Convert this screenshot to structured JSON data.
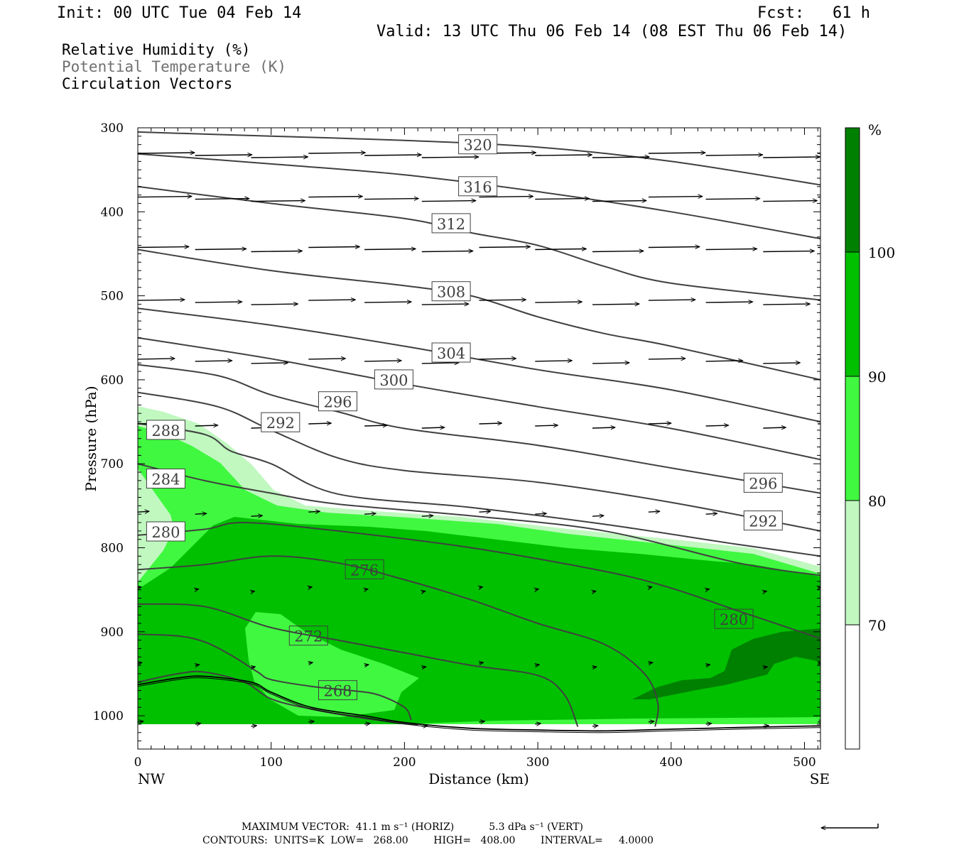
{
  "header": {
    "init": "Init: 00 UTC Tue 04 Feb 14",
    "fcst": "Fcst:   61 h",
    "valid": "Valid: 13 UTC Thu 06 Feb 14 (08 EST Thu 06 Feb 14)"
  },
  "legend": {
    "rh": "Relative Humidity (%)",
    "theta": "Potential Temperature (K)",
    "vectors": "Circulation Vectors"
  },
  "colors": {
    "rh70": "#c0f8c0",
    "rh80": "#40f840",
    "rh90": "#00c000",
    "rh100": "#008000",
    "contour": "#404040"
  },
  "chart_data": {
    "type": "cross-section",
    "xlabel": "Distance (km)",
    "ylabel": "Pressure (hPa)",
    "xlim": [
      0,
      512
    ],
    "ylim": [
      1040,
      300
    ],
    "x_ticks": [
      "0",
      "100",
      "200",
      "300",
      "400",
      "500"
    ],
    "y_ticks": [
      "300",
      "400",
      "500",
      "600",
      "700",
      "800",
      "900",
      "1000"
    ],
    "x_end_labels": {
      "left": "NW",
      "right": "SE"
    },
    "colorbar": {
      "unit": "%",
      "levels": [
        "70",
        "80",
        "90",
        "100"
      ]
    },
    "theta_contours": [
      {
        "value": 320,
        "points": [
          [
            0,
            305
          ],
          [
            100,
            310
          ],
          [
            200,
            315
          ],
          [
            300,
            323
          ],
          [
            400,
            340
          ],
          [
            512,
            368
          ]
        ]
      },
      {
        "value": 316,
        "points": [
          [
            0,
            331
          ],
          [
            100,
            343
          ],
          [
            200,
            356
          ],
          [
            300,
            376
          ],
          [
            400,
            400
          ],
          [
            512,
            432
          ]
        ]
      },
      {
        "value": 312,
        "points": [
          [
            0,
            370
          ],
          [
            100,
            390
          ],
          [
            200,
            408
          ],
          [
            250,
            425
          ],
          [
            300,
            440
          ],
          [
            350,
            465
          ],
          [
            400,
            485
          ],
          [
            512,
            505
          ]
        ]
      },
      {
        "value": 308,
        "points": [
          [
            0,
            445
          ],
          [
            100,
            470
          ],
          [
            200,
            488
          ],
          [
            250,
            500
          ],
          [
            300,
            525
          ],
          [
            350,
            545
          ],
          [
            400,
            560
          ],
          [
            512,
            600
          ]
        ]
      },
      {
        "value": 304,
        "points": [
          [
            0,
            515
          ],
          [
            100,
            535
          ],
          [
            200,
            560
          ],
          [
            300,
            588
          ],
          [
            400,
            612
          ],
          [
            512,
            650
          ]
        ]
      },
      {
        "value": 300,
        "points": [
          [
            0,
            550
          ],
          [
            100,
            575
          ],
          [
            200,
            605
          ],
          [
            300,
            632
          ],
          [
            400,
            658
          ],
          [
            512,
            695
          ]
        ]
      },
      {
        "value": 296,
        "points": [
          [
            0,
            582
          ],
          [
            60,
            595
          ],
          [
            100,
            618
          ],
          [
            150,
            638
          ],
          [
            200,
            658
          ],
          [
            300,
            678
          ],
          [
            400,
            705
          ],
          [
            512,
            735
          ]
        ]
      },
      {
        "value": 292,
        "points": [
          [
            0,
            615
          ],
          [
            60,
            632
          ],
          [
            100,
            660
          ],
          [
            150,
            693
          ],
          [
            200,
            708
          ],
          [
            300,
            722
          ],
          [
            400,
            746
          ],
          [
            512,
            780
          ]
        ]
      },
      {
        "value": 288,
        "points": [
          [
            0,
            652
          ],
          [
            50,
            665
          ],
          [
            70,
            685
          ],
          [
            100,
            700
          ],
          [
            150,
            736
          ],
          [
            250,
            752
          ],
          [
            350,
            772
          ],
          [
            450,
            796
          ],
          [
            512,
            810
          ]
        ]
      },
      {
        "value": 284,
        "points": [
          [
            0,
            700
          ],
          [
            50,
            720
          ],
          [
            100,
            735
          ],
          [
            150,
            748
          ],
          [
            250,
            762
          ],
          [
            350,
            780
          ],
          [
            450,
            818
          ],
          [
            512,
            833
          ]
        ]
      },
      {
        "value": 280,
        "points": [
          [
            0,
            785
          ],
          [
            50,
            778
          ],
          [
            80,
            770
          ],
          [
            150,
            780
          ],
          [
            250,
            800
          ],
          [
            350,
            828
          ],
          [
            400,
            848
          ],
          [
            450,
            875
          ],
          [
            512,
            908
          ]
        ]
      },
      {
        "value": 276,
        "points": [
          [
            0,
            826
          ],
          [
            50,
            820
          ],
          [
            100,
            810
          ],
          [
            150,
            818
          ],
          [
            200,
            838
          ],
          [
            250,
            862
          ],
          [
            300,
            890
          ],
          [
            350,
            915
          ],
          [
            380,
            950
          ],
          [
            390,
            985
          ],
          [
            388,
            1013
          ]
        ]
      },
      {
        "value": 276,
        "points": [
          [
            0,
            867
          ],
          [
            50,
            870
          ],
          [
            100,
            895
          ],
          [
            150,
            910
          ],
          [
            200,
            925
          ],
          [
            250,
            940
          ],
          [
            300,
            952
          ],
          [
            320,
            975
          ],
          [
            330,
            1013
          ]
        ]
      },
      {
        "value": 272,
        "points": [
          [
            0,
            903
          ],
          [
            30,
            905
          ],
          [
            50,
            912
          ],
          [
            70,
            928
          ],
          [
            90,
            948
          ],
          [
            100,
            957
          ],
          [
            130,
            965
          ],
          [
            160,
            970
          ],
          [
            180,
            975
          ],
          [
            200,
            990
          ],
          [
            205,
            1005
          ]
        ]
      },
      {
        "value": 268,
        "points": [
          [
            0,
            960
          ],
          [
            30,
            950
          ],
          [
            50,
            948
          ],
          [
            80,
            960
          ],
          [
            100,
            980
          ],
          [
            130,
            992
          ],
          [
            170,
            1003
          ],
          [
            210,
            1011
          ]
        ]
      }
    ],
    "contour_labels": [
      {
        "text": "320",
        "x": 255,
        "y": 320
      },
      {
        "text": "316",
        "x": 255,
        "y": 370
      },
      {
        "text": "312",
        "x": 235,
        "y": 414
      },
      {
        "text": "308",
        "x": 235,
        "y": 495
      },
      {
        "text": "304",
        "x": 235,
        "y": 568
      },
      {
        "text": "300",
        "x": 192,
        "y": 600
      },
      {
        "text": "296",
        "x": 150,
        "y": 626
      },
      {
        "text": "292",
        "x": 107,
        "y": 651
      },
      {
        "text": "288",
        "x": 21,
        "y": 660
      },
      {
        "text": "284",
        "x": 21,
        "y": 718
      },
      {
        "text": "280",
        "x": 21,
        "y": 781
      },
      {
        "text": "276",
        "x": 170,
        "y": 826
      },
      {
        "text": "272",
        "x": 128,
        "y": 905
      },
      {
        "text": "268",
        "x": 150,
        "y": 970
      },
      {
        "text": "280",
        "x": 447,
        "y": 885
      },
      {
        "text": "296",
        "x": 469,
        "y": 723
      },
      {
        "text": "292",
        "x": 469,
        "y": 768
      }
    ],
    "vector_rows": [
      {
        "p": 333,
        "u": 40,
        "xs": [
          0,
          43,
          85,
          128,
          170,
          213,
          256,
          298,
          341,
          383,
          426,
          469,
          510
        ]
      },
      {
        "p": 385,
        "u": 38,
        "xs": [
          0,
          43,
          85,
          128,
          170,
          213,
          256,
          298,
          341,
          383,
          426,
          469,
          510
        ]
      },
      {
        "p": 445,
        "u": 36,
        "xs": [
          0,
          43,
          85,
          128,
          170,
          213,
          256,
          298,
          341,
          383,
          426,
          469,
          510
        ]
      },
      {
        "p": 508,
        "u": 33,
        "xs": [
          0,
          43,
          85,
          128,
          170,
          213,
          256,
          298,
          341,
          383,
          426,
          469,
          510
        ]
      },
      {
        "p": 578,
        "u": 26,
        "xs": [
          0,
          43,
          85,
          128,
          170,
          213,
          256,
          298,
          341,
          383,
          426,
          469,
          510
        ]
      },
      {
        "p": 655,
        "u": 16,
        "xs": [
          0,
          43,
          85,
          128,
          170,
          213,
          256,
          298,
          341,
          383,
          426,
          469,
          510
        ]
      },
      {
        "p": 760,
        "u": 8,
        "xs": [
          0,
          43,
          85,
          128,
          170,
          213,
          256,
          298,
          341,
          383,
          426,
          469,
          510
        ]
      },
      {
        "p": 850,
        "u": 2,
        "xs": [
          0,
          43,
          85,
          128,
          170,
          213,
          256,
          298,
          341,
          383,
          426,
          469,
          510
        ]
      },
      {
        "p": 940,
        "u": 3,
        "xs": [
          0,
          43,
          85,
          128,
          170,
          213,
          256,
          298,
          341,
          383,
          426,
          469,
          510
        ]
      },
      {
        "p": 1010,
        "u": 4,
        "xs": [
          0,
          43,
          85,
          128,
          170,
          213,
          256,
          298,
          341,
          383,
          426,
          469,
          510
        ]
      }
    ],
    "terrain": [
      [
        0,
        963
      ],
      [
        30,
        955
      ],
      [
        50,
        953
      ],
      [
        85,
        960
      ],
      [
        100,
        972
      ],
      [
        130,
        990
      ],
      [
        170,
        1000
      ],
      [
        200,
        1008
      ],
      [
        250,
        1015
      ],
      [
        300,
        1017
      ],
      [
        350,
        1018
      ],
      [
        400,
        1016
      ],
      [
        450,
        1014
      ],
      [
        512,
        1012
      ]
    ]
  },
  "footer": {
    "max_vector": "MAXIMUM VECTOR:  41.1 m s⁻¹ (HORIZ)           5.3 dPa s⁻¹ (VERT)",
    "contours": "CONTOURS:  UNITS=K  LOW=   268.00        HIGH=   408.00        INTERVAL=     4.0000"
  }
}
